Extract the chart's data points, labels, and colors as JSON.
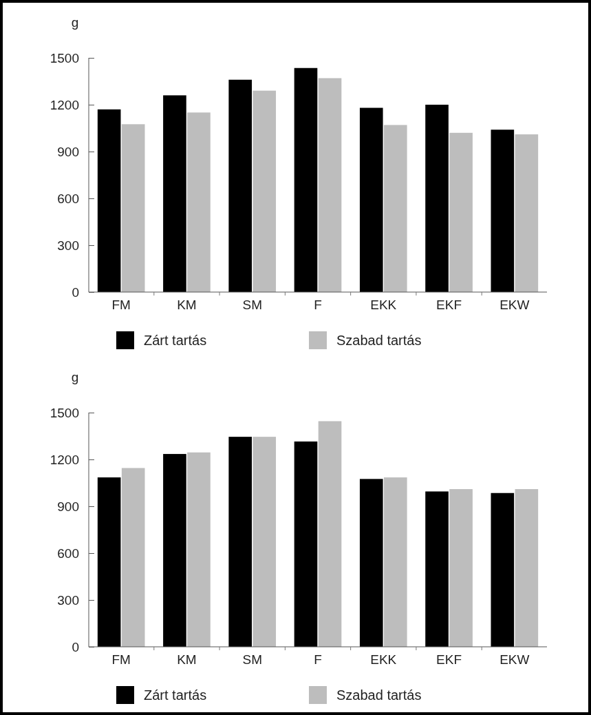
{
  "chart_data": [
    {
      "type": "bar",
      "ylabel": "g",
      "categories": [
        "FM",
        "KM",
        "SM",
        "F",
        "EKK",
        "EKF",
        "EKW"
      ],
      "series": [
        {
          "name": "Zárt tartás",
          "color": "#000000",
          "values": [
            1170,
            1260,
            1360,
            1435,
            1180,
            1200,
            1040
          ]
        },
        {
          "name": "Szabad tartás",
          "color": "#bdbdbd",
          "values": [
            1075,
            1150,
            1290,
            1370,
            1070,
            1020,
            1010
          ]
        }
      ],
      "ylim": [
        0,
        1500
      ],
      "yticks": [
        0,
        300,
        600,
        900,
        1200,
        1500
      ],
      "legend": "bottom"
    },
    {
      "type": "bar",
      "ylabel": "g",
      "categories": [
        "FM",
        "KM",
        "SM",
        "F",
        "EKK",
        "EKF",
        "EKW"
      ],
      "series": [
        {
          "name": "Zárt tartás",
          "color": "#000000",
          "values": [
            1085,
            1235,
            1345,
            1315,
            1075,
            995,
            985
          ]
        },
        {
          "name": "Szabad tartás",
          "color": "#bdbdbd",
          "values": [
            1145,
            1245,
            1345,
            1445,
            1085,
            1010,
            1010
          ]
        }
      ],
      "ylim": [
        0,
        1500
      ],
      "yticks": [
        0,
        300,
        600,
        900,
        1200,
        1500
      ],
      "legend": "bottom"
    }
  ]
}
